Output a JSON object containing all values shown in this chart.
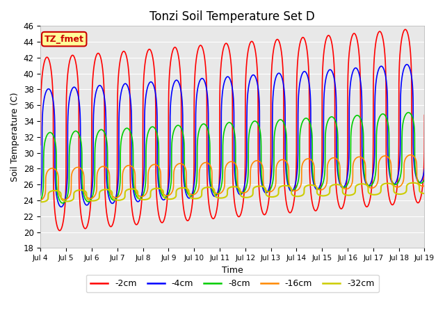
{
  "title": "Tonzi Soil Temperature Set D",
  "xlabel": "Time",
  "ylabel": "Soil Temperature (C)",
  "ylim": [
    18,
    46
  ],
  "series_labels": [
    "-2cm",
    "-4cm",
    "-8cm",
    "-16cm",
    "-32cm"
  ],
  "series_colors": [
    "#ff0000",
    "#0000ff",
    "#00cc00",
    "#ff8800",
    "#cccc00"
  ],
  "series_linewidths": [
    1.2,
    1.2,
    1.2,
    1.2,
    1.5
  ],
  "xtick_labels": [
    "Jul 4",
    "Jul 5",
    "Jul 6",
    "Jul 7",
    "Jul 8",
    "Jul 9",
    "Jul 10",
    "Jul 11",
    "Jul 12",
    "Jul 13",
    "Jul 14",
    "Jul 15",
    "Jul 16",
    "Jul 17",
    "Jul 18",
    "Jul 19"
  ],
  "annotation_text": "TZ_fmet",
  "annotation_bbox_facecolor": "#ffff99",
  "annotation_bbox_edgecolor": "#cc0000",
  "background_color": "#e8e8e8",
  "fig_background": "#ffffff",
  "grid_color": "#ffffff",
  "title_fontsize": 12,
  "mean_2": 31.0,
  "mean_trend_2": 0.25,
  "mean_4": 30.5,
  "mean_trend_4": 0.22,
  "mean_8": 28.0,
  "mean_trend_8": 0.18,
  "mean_16": 26.0,
  "mean_trend_16": 0.12,
  "mean_32": 24.5,
  "mean_trend_32": 0.07,
  "amp_2": 11.0,
  "amp_4": 7.5,
  "amp_8": 4.5,
  "amp_16": 2.0,
  "amp_32": 0.7,
  "phase_2": 0.0,
  "phase_4": 0.06,
  "phase_8": 0.12,
  "phase_16": 0.2,
  "phase_32": 0.3,
  "sharpness": 4.0
}
